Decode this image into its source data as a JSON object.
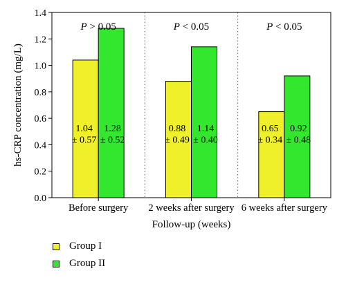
{
  "chart_data": {
    "type": "bar",
    "categories": [
      "Before surgery",
      "2 weeks after surgery",
      "6 weeks after surgery"
    ],
    "series": [
      {
        "name": "Group I",
        "values": [
          1.04,
          0.88,
          0.65
        ],
        "color": "#f0f02a"
      },
      {
        "name": "Group II",
        "values": [
          1.28,
          1.14,
          0.92
        ],
        "color": "#33e62e"
      }
    ],
    "data_labels": [
      [
        "1.04\n± 0.57",
        "1.28\n± 0.52"
      ],
      [
        "0.88\n± 0.49",
        "1.14\n± 0.40"
      ],
      [
        "0.65\n± 0.34",
        "0.92\n± 0.48"
      ]
    ],
    "annotations": [
      {
        "italic": "P",
        "text": " > 0.05"
      },
      {
        "italic": "P",
        "text": " < 0.05"
      },
      {
        "italic": "P",
        "text": " < 0.05"
      }
    ],
    "xlabel": "Follow-up (weeks)",
    "ylabel": "hs-CRP concentration (mg/L)",
    "ylim": [
      0,
      1.4
    ],
    "yticks": [
      "0.0",
      "0.2",
      "0.4",
      "0.6",
      "0.8",
      "1.0",
      "1.2",
      "1.4"
    ],
    "grid": "dotted vertical separators between groups",
    "legend_position": "bottom-left"
  },
  "legend": {
    "items": [
      "Group I",
      "Group II"
    ]
  }
}
